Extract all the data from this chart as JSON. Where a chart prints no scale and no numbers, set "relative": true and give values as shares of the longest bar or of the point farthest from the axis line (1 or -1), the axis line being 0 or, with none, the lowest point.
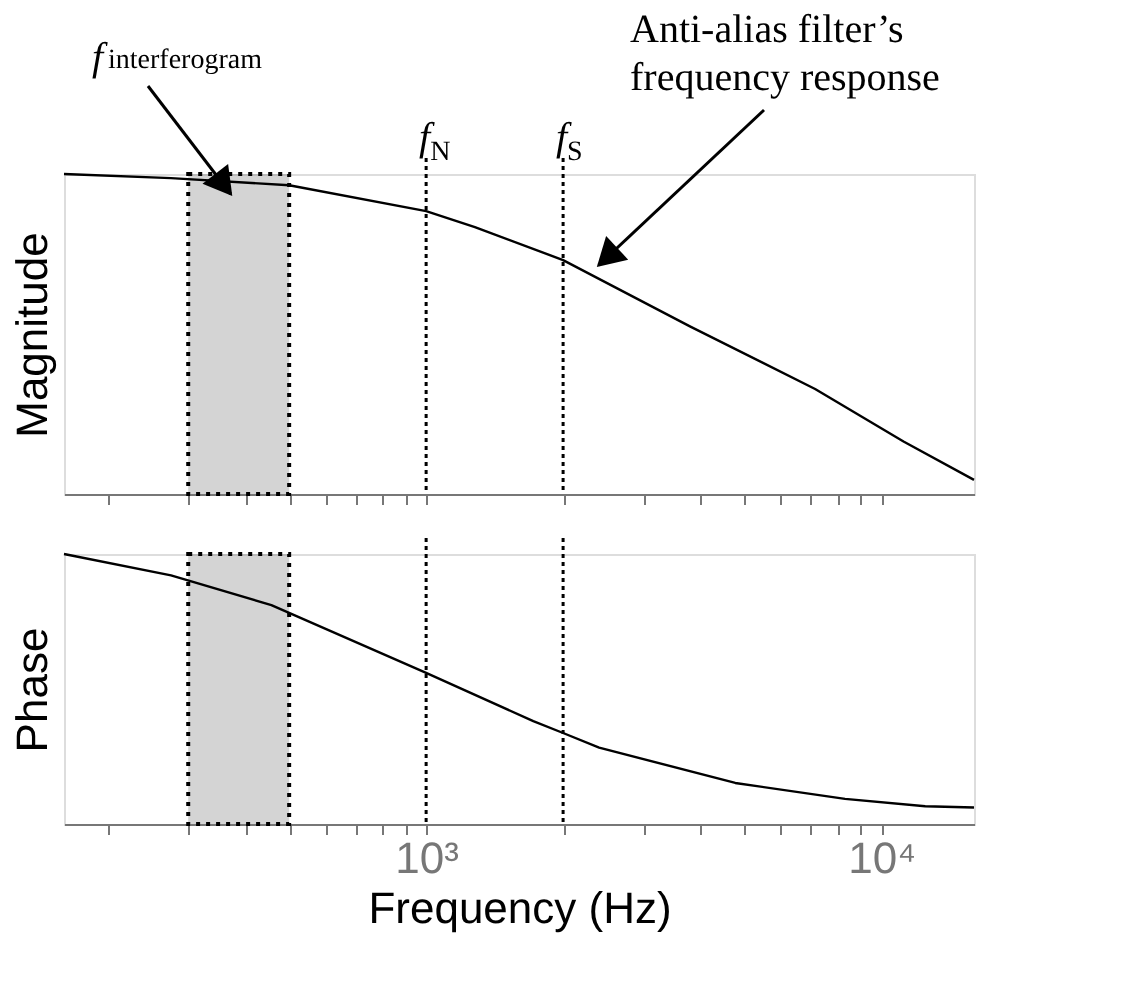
{
  "chart_data": [
    {
      "type": "line",
      "ylabel": "Magnitude",
      "relative": true,
      "tick_labels": false,
      "x": [
        160,
        275,
        500,
        1000,
        1280,
        2000,
        3800,
        7160,
        11200,
        16000
      ],
      "series": [
        {
          "color": "#000000",
          "values": [
            1.0,
            0.987,
            0.965,
            0.884,
            0.834,
            0.731,
            0.524,
            0.328,
            0.164,
            0.044
          ]
        }
      ],
      "xlim": [
        160,
        16000
      ],
      "log": "x",
      "xticks": [
        {
          "value": 200,
          "label": null
        },
        {
          "value": 300,
          "label": null
        },
        {
          "value": 400,
          "label": null
        },
        {
          "value": 500,
          "label": null
        },
        {
          "value": 600,
          "label": null
        },
        {
          "value": 700,
          "label": null
        },
        {
          "value": 800,
          "label": null
        },
        {
          "value": 900,
          "label": null
        },
        {
          "value": 1000,
          "label": null
        },
        {
          "value": 2000,
          "label": null
        },
        {
          "value": 3000,
          "label": null
        },
        {
          "value": 4000,
          "label": null
        },
        {
          "value": 5000,
          "label": null
        },
        {
          "value": 6000,
          "label": null
        },
        {
          "value": 7000,
          "label": null
        },
        {
          "value": 8000,
          "label": null
        },
        {
          "value": 9000,
          "label": null
        },
        {
          "value": 10000,
          "label": null
        }
      ],
      "ref_lines": [
        {
          "axis": "x",
          "value": 1000,
          "label": "f$_{N}$",
          "line_style": "dotted"
        },
        {
          "axis": "x",
          "value": 2000,
          "label": "f$_{S}$",
          "line_style": "dotted"
        }
      ],
      "bands": [
        {
          "axis": "x",
          "from": 300,
          "to": 500,
          "label": "f$_{interferogram}$",
          "color": "#555555"
        }
      ],
      "annotations": [
        {
          "text": "Anti-alias filter’s\nfrequency response",
          "x": 2300,
          "y": 0.69
        }
      ]
    },
    {
      "type": "line",
      "ylabel": "Phase",
      "xlabel": "Frequency (Hz)",
      "relative": true,
      "tick_labels": "x",
      "x": [
        160,
        275,
        457,
        1000,
        1720,
        2000,
        2400,
        4780,
        8330,
        12500,
        16000
      ],
      "series": [
        {
          "color": "#000000",
          "values": [
            1.0,
            0.921,
            0.811,
            0.56,
            0.381,
            0.337,
            0.283,
            0.152,
            0.093,
            0.066,
            0.061
          ]
        }
      ],
      "xlim": [
        160,
        16000
      ],
      "log": "x",
      "xticks": [
        {
          "value": 200,
          "label": null
        },
        {
          "value": 300,
          "label": null
        },
        {
          "value": 400,
          "label": null
        },
        {
          "value": 500,
          "label": null
        },
        {
          "value": 600,
          "label": null
        },
        {
          "value": 700,
          "label": null
        },
        {
          "value": 800,
          "label": null
        },
        {
          "value": 900,
          "label": null
        },
        {
          "value": 1000,
          "label": "10³"
        },
        {
          "value": 2000,
          "label": null
        },
        {
          "value": 3000,
          "label": null
        },
        {
          "value": 4000,
          "label": null
        },
        {
          "value": 5000,
          "label": null
        },
        {
          "value": 6000,
          "label": null
        },
        {
          "value": 7000,
          "label": null
        },
        {
          "value": 8000,
          "label": null
        },
        {
          "value": 9000,
          "label": null
        },
        {
          "value": 10000,
          "label": "10⁴"
        }
      ],
      "ref_lines": [
        {
          "axis": "x",
          "value": 1000,
          "line_style": "dotted"
        },
        {
          "axis": "x",
          "value": 2000,
          "line_style": "dotted"
        }
      ],
      "bands": [
        {
          "axis": "x",
          "from": 300,
          "to": 500,
          "color": "#555555"
        }
      ]
    }
  ]
}
